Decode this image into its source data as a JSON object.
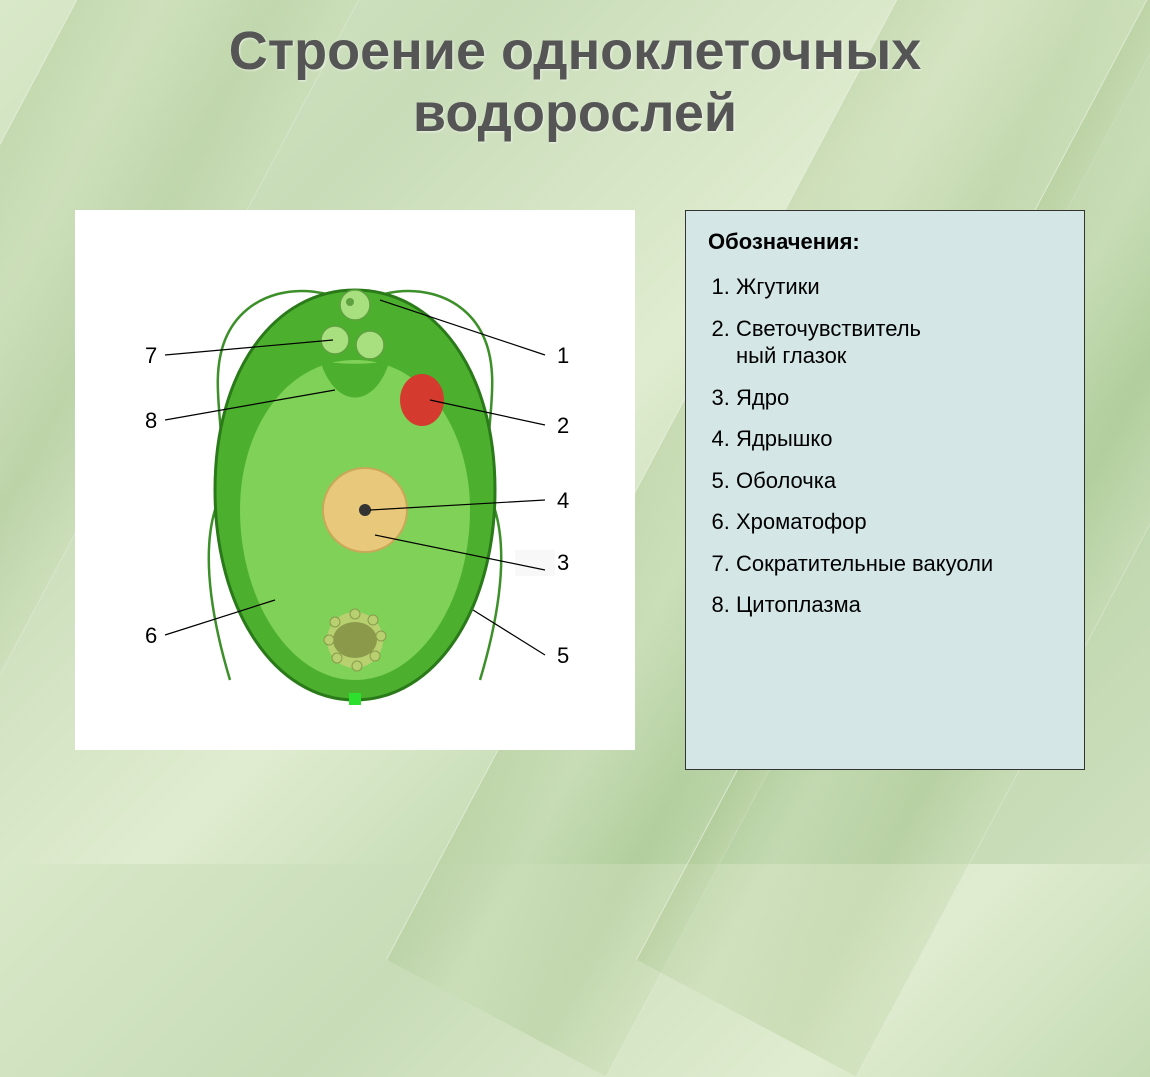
{
  "title_line1": "Строение одноклеточных",
  "title_line2": "водорослей",
  "title_fontsize": 54,
  "title_color": "#555555",
  "legend": {
    "heading": "Обозначения:",
    "heading_fontsize": 22,
    "item_fontsize": 22,
    "text_color": "#000000",
    "bg_color": "#d4e6e6",
    "border_color": "#333333",
    "items": [
      "Жгутики",
      "Светочувствитель\nный глазок",
      "Ядро",
      "Ядрышко",
      "Оболочка",
      "Хроматофор",
      "Сократительные вакуоли",
      "Цитоплазма"
    ]
  },
  "diagram": {
    "bg_color": "#ffffff",
    "label_fontsize": 22,
    "label_color": "#000000",
    "leader_color": "#000000",
    "cell_body_fill": "#4caf2e",
    "cell_body_stroke": "#2a7a1a",
    "chromatophore_fill": "#7fd157",
    "flagella_color": "#3d8f2a",
    "flagella_width": 2.5,
    "eyespot_fill": "#d43a2e",
    "nucleus_fill": "#e8c87a",
    "nucleus_stroke": "#c9a85a",
    "nucleolus_fill": "#333333",
    "vacuole_fill": "#a8e080",
    "vacuole_stroke": "#5fa040",
    "pyrenoid_fill": "#8a9a4a",
    "pyrenoid_ring_fill": "#b8d070",
    "apex_bulb_fill": "#a8e080",
    "white_base_patch": "#f8f8f8",
    "labels": {
      "1": "1",
      "2": "2",
      "3": "3",
      "4": "4",
      "5": "5",
      "6": "6",
      "7": "7",
      "8": "8"
    }
  },
  "background": {
    "base_gradient": [
      "#d8e8c8",
      "#c8dcb8",
      "#e0ecd0",
      "#b8d4a8",
      "#d0e0c0"
    ],
    "stripe_tint": "#a0be82"
  }
}
